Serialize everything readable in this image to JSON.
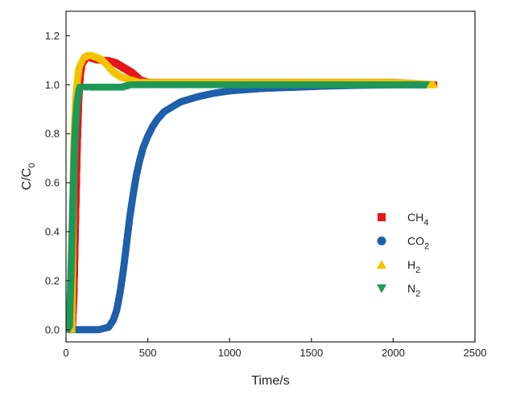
{
  "chart_data": {
    "type": "scatter",
    "title": "",
    "xlabel": "Time/s",
    "ylabel_main": "C/C",
    "ylabel_sub": "0",
    "xlim": [
      0,
      2500
    ],
    "ylim": [
      -0.05,
      1.3
    ],
    "xticks": [
      0,
      500,
      1000,
      1500,
      2000,
      2500
    ],
    "xtick_labels": [
      "0",
      "500",
      "1000",
      "1500",
      "2000",
      "2500"
    ],
    "yticks": [
      0.0,
      0.2,
      0.4,
      0.6,
      0.8,
      1.0,
      1.2
    ],
    "ytick_labels": [
      "0.0",
      "0.2",
      "0.4",
      "0.6",
      "0.8",
      "1.0",
      "1.2"
    ],
    "grid": false,
    "legend_position": "right-middle",
    "series": [
      {
        "name": "CH4",
        "label_main": "CH",
        "label_sub": "4",
        "marker": "square",
        "color": "#e8141b",
        "x": [
          40,
          50,
          60,
          70,
          80,
          90,
          100,
          120,
          150,
          200,
          250,
          300,
          350,
          400,
          450,
          500,
          600,
          800,
          1000,
          1500,
          2000,
          2250
        ],
        "y": [
          0.0,
          0.15,
          0.45,
          0.75,
          0.95,
          1.05,
          1.09,
          1.11,
          1.11,
          1.1,
          1.1,
          1.09,
          1.07,
          1.05,
          1.02,
          1.01,
          1.01,
          1.01,
          1.01,
          1.01,
          1.01,
          1.0
        ]
      },
      {
        "name": "CO2",
        "label_main": "CO",
        "label_sub": "2",
        "marker": "circle",
        "color": "#1f5fab",
        "x": [
          20,
          100,
          200,
          260,
          290,
          310,
          330,
          350,
          370,
          390,
          410,
          430,
          450,
          470,
          500,
          530,
          560,
          600,
          650,
          700,
          800,
          900,
          1000,
          1100,
          1200,
          1400,
          1600,
          1800,
          2000,
          2200
        ],
        "y": [
          0.0,
          0.0,
          0.0,
          0.01,
          0.04,
          0.08,
          0.15,
          0.24,
          0.35,
          0.46,
          0.55,
          0.63,
          0.69,
          0.74,
          0.79,
          0.83,
          0.86,
          0.89,
          0.91,
          0.93,
          0.95,
          0.965,
          0.975,
          0.98,
          0.985,
          0.99,
          0.995,
          0.998,
          1.0,
          1.0
        ]
      },
      {
        "name": "H2",
        "label_main": "H",
        "label_sub": "2",
        "marker": "triangle-up",
        "color": "#f4c300",
        "x": [
          35,
          40,
          45,
          50,
          60,
          70,
          80,
          100,
          130,
          160,
          200,
          230,
          260,
          300,
          350,
          400,
          450,
          500,
          600,
          800,
          1000,
          1500,
          2000,
          2250
        ],
        "y": [
          0.0,
          0.3,
          0.6,
          0.8,
          0.96,
          1.03,
          1.08,
          1.11,
          1.12,
          1.12,
          1.11,
          1.1,
          1.08,
          1.05,
          1.03,
          1.02,
          1.01,
          1.01,
          1.01,
          1.01,
          1.01,
          1.01,
          1.01,
          1.0
        ]
      },
      {
        "name": "N2",
        "label_main": "N",
        "label_sub": "2",
        "marker": "triangle-down",
        "color": "#1e9857",
        "x": [
          20,
          30,
          40,
          50,
          60,
          70,
          80,
          90,
          100,
          120,
          150,
          200,
          250,
          300,
          350,
          400,
          500,
          600,
          800,
          1000,
          1200,
          1500,
          1800,
          2000,
          2200
        ],
        "y": [
          0.0,
          0.2,
          0.45,
          0.7,
          0.85,
          0.93,
          0.97,
          0.99,
          0.99,
          0.99,
          0.99,
          0.99,
          0.99,
          0.99,
          0.99,
          1.0,
          1.0,
          1.0,
          1.0,
          1.0,
          1.0,
          1.0,
          1.0,
          1.0,
          1.0
        ]
      }
    ]
  }
}
